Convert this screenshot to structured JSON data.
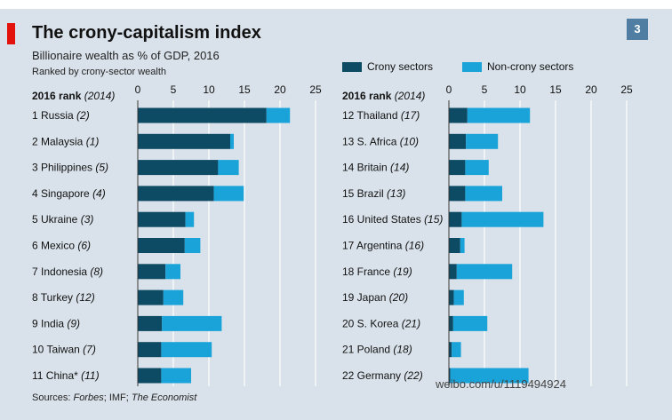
{
  "header": {
    "title": "The crony-capitalism index",
    "subtitle": "Billionaire wealth as % of GDP, 2016",
    "note": "Ranked by crony-sector wealth",
    "chart_number": "3"
  },
  "legend": {
    "crony_label": "Crony sectors",
    "noncrony_label": "Non-crony sectors"
  },
  "colors": {
    "crony": "#0d4a64",
    "noncrony": "#1aa3d9",
    "background": "#d9e2ea",
    "accent": "#e3120b"
  },
  "footer": {
    "sources_prefix": "Sources: ",
    "source1": "Forbes",
    "source2": "; IMF; ",
    "source3": "The Economist",
    "watermark": "weibo.com/u/1119494924"
  },
  "chart_data": [
    {
      "type": "bar",
      "orientation": "horizontal",
      "stacked": true,
      "column_header": "2016 rank",
      "column_header_note": "(2014)",
      "xlim": [
        0,
        25
      ],
      "xticks": [
        0,
        5,
        10,
        15,
        20,
        25
      ],
      "grid": true,
      "categories": [
        {
          "label": "1 Russia",
          "prev": "(2)"
        },
        {
          "label": "2 Malaysia",
          "prev": "(1)"
        },
        {
          "label": "3 Philippines",
          "prev": "(5)"
        },
        {
          "label": "4 Singapore",
          "prev": "(4)"
        },
        {
          "label": "5 Ukraine",
          "prev": "(3)"
        },
        {
          "label": "6 Mexico",
          "prev": "(6)"
        },
        {
          "label": "7 Indonesia",
          "prev": "(8)"
        },
        {
          "label": "8 Turkey",
          "prev": "(12)"
        },
        {
          "label": "9 India",
          "prev": "(9)"
        },
        {
          "label": "10 Taiwan",
          "prev": "(7)"
        },
        {
          "label": "11 China*",
          "prev": "(11)"
        }
      ],
      "series": [
        {
          "name": "Crony sectors",
          "values": [
            18.1,
            13.0,
            11.3,
            10.7,
            6.7,
            6.6,
            3.9,
            3.6,
            3.4,
            3.3,
            3.3
          ]
        },
        {
          "name": "Non-crony sectors",
          "values": [
            3.3,
            0.5,
            2.9,
            4.2,
            1.2,
            2.2,
            2.1,
            2.8,
            8.4,
            7.1,
            4.2
          ]
        }
      ]
    },
    {
      "type": "bar",
      "orientation": "horizontal",
      "stacked": true,
      "column_header": "2016 rank",
      "column_header_note": "(2014)",
      "xlim": [
        0,
        25
      ],
      "xticks": [
        0,
        5,
        10,
        15,
        20,
        25
      ],
      "grid": true,
      "categories": [
        {
          "label": "12 Thailand",
          "prev": "(17)"
        },
        {
          "label": "13 S. Africa",
          "prev": "(10)"
        },
        {
          "label": "14 Britain",
          "prev": "(14)"
        },
        {
          "label": "15 Brazil",
          "prev": "(13)"
        },
        {
          "label": "16 United States",
          "prev": "(15)"
        },
        {
          "label": "17 Argentina",
          "prev": "(16)"
        },
        {
          "label": "18 France",
          "prev": "(19)"
        },
        {
          "label": "19 Japan",
          "prev": "(20)"
        },
        {
          "label": "20 S. Korea",
          "prev": "(21)"
        },
        {
          "label": "21 Poland",
          "prev": "(18)"
        },
        {
          "label": "22 Germany",
          "prev": "(22)"
        }
      ],
      "series": [
        {
          "name": "Crony sectors",
          "values": [
            2.6,
            2.4,
            2.3,
            2.3,
            1.8,
            1.6,
            1.1,
            0.7,
            0.6,
            0.4,
            0.2
          ]
        },
        {
          "name": "Non-crony sectors",
          "values": [
            8.8,
            4.5,
            3.3,
            5.2,
            11.5,
            0.6,
            7.8,
            1.4,
            4.8,
            1.3,
            11.0
          ]
        }
      ]
    }
  ]
}
